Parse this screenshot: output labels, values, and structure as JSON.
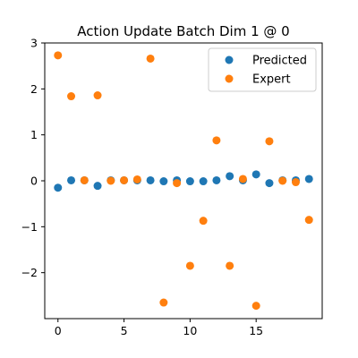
{
  "chart_data": {
    "type": "scatter",
    "title": "Action Update Batch Dim 1 @ 0",
    "xlabel": "",
    "ylabel": "",
    "xlim": [
      -1,
      20
    ],
    "ylim": [
      -3,
      3
    ],
    "xticks": [
      0,
      5,
      10,
      15
    ],
    "yticks": [
      -2,
      -1,
      0,
      1,
      2,
      3
    ],
    "grid": false,
    "legend": "top-right",
    "series": [
      {
        "name": "Predicted",
        "color": "#1f77b4",
        "x": [
          0,
          1,
          2,
          3,
          4,
          5,
          6,
          7,
          8,
          9,
          10,
          11,
          12,
          13,
          14,
          15,
          16,
          17,
          18,
          19
        ],
        "y": [
          -0.15,
          0.01,
          0.01,
          -0.11,
          0.01,
          0.01,
          0.01,
          0.01,
          -0.01,
          0.01,
          -0.01,
          -0.01,
          0.01,
          0.1,
          0.01,
          0.14,
          -0.05,
          0.01,
          0.01,
          0.04
        ]
      },
      {
        "name": "Expert",
        "color": "#ff7f0e",
        "x": [
          0,
          1,
          2,
          3,
          4,
          5,
          6,
          7,
          8,
          9,
          10,
          11,
          12,
          13,
          14,
          15,
          16,
          17,
          18,
          19
        ],
        "y": [
          2.73,
          1.84,
          0.01,
          1.86,
          0.0,
          0.01,
          0.03,
          2.66,
          -2.65,
          -0.05,
          -1.85,
          -0.87,
          0.88,
          -1.85,
          0.04,
          -2.72,
          0.86,
          0.0,
          -0.03,
          -0.85
        ]
      }
    ]
  }
}
